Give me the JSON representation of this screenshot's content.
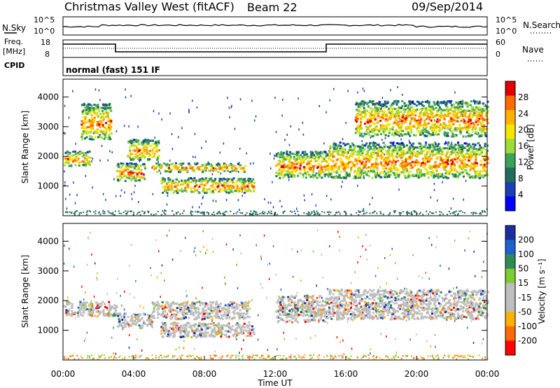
{
  "header": {
    "station": "Christmas Valley West (fitACF)",
    "beam": "Beam 22",
    "date": "09/Sep/2014"
  },
  "noise_panel": {
    "left_label": "N.Sky",
    "right_label": "N.Search",
    "ticks": [
      "10^5",
      "10^0"
    ]
  },
  "freq_panel": {
    "left_label_1": "Freq.",
    "left_label_2": "[MHz]",
    "left_ticks": [
      "18",
      "8"
    ],
    "right_label": "Nave",
    "right_ticks": [
      "60",
      "0"
    ]
  },
  "cpid_panel": {
    "label": "CPID",
    "mode": "normal (fast) 151 IF"
  },
  "chart_data": [
    {
      "type": "heatmap",
      "name": "power",
      "ylabel": "Slant Range [km]",
      "yticks": [
        "4000",
        "3000",
        "2000",
        "1000"
      ],
      "colorbar_label": "Power [dB]",
      "colorbar_ticks": [
        "28",
        "24",
        "20",
        "16",
        "12",
        "8",
        "4"
      ],
      "colors": [
        "#e00000",
        "#ff6a00",
        "#ffb000",
        "#f5e600",
        "#9fdc3a",
        "#3aa35a",
        "#1f6e5a",
        "#1b3fb4",
        "#0000ff"
      ],
      "bands": [
        {
          "x": [
            0.0,
            1.5
          ],
          "y": [
            1700,
            2200
          ]
        },
        {
          "x": [
            1.0,
            2.7
          ],
          "y": [
            2600,
            3800
          ]
        },
        {
          "x": [
            3.0,
            4.6
          ],
          "y": [
            1200,
            1800
          ]
        },
        {
          "x": [
            3.6,
            5.4
          ],
          "y": [
            1900,
            2600
          ]
        },
        {
          "x": [
            5.0,
            10.3
          ],
          "y": [
            1500,
            1800
          ]
        },
        {
          "x": [
            5.5,
            10.8
          ],
          "y": [
            800,
            1300
          ]
        },
        {
          "x": [
            12.0,
            15.0
          ],
          "y": [
            1300,
            2200
          ]
        },
        {
          "x": [
            15.0,
            24.0
          ],
          "y": [
            1300,
            2500
          ]
        },
        {
          "x": [
            16.5,
            24.0
          ],
          "y": [
            2700,
            3900
          ]
        }
      ]
    },
    {
      "type": "heatmap",
      "name": "velocity",
      "ylabel": "Slant Range [km]",
      "yticks": [
        "4000",
        "3000",
        "2000",
        "1000"
      ],
      "colorbar_label": "Velocity [m s⁻¹]",
      "colorbar_ticks": [
        "200",
        "100",
        "50",
        "15",
        "-15",
        "-50",
        "-100",
        "-200"
      ],
      "colors": [
        "#1b2e9e",
        "#2060d0",
        "#2e8b57",
        "#7ccd32",
        "#bebebe",
        "#bebebe",
        "#ffb000",
        "#ff6a00",
        "#ff0000"
      ],
      "bands": [
        {
          "x": [
            0.0,
            3.0
          ],
          "y": [
            1500,
            2000
          ]
        },
        {
          "x": [
            3.0,
            5.0
          ],
          "y": [
            1100,
            1600
          ]
        },
        {
          "x": [
            5.0,
            10.5
          ],
          "y": [
            1400,
            2000
          ]
        },
        {
          "x": [
            5.5,
            10.8
          ],
          "y": [
            800,
            1300
          ]
        },
        {
          "x": [
            15.0,
            24.0
          ],
          "y": [
            1400,
            2400
          ]
        },
        {
          "x": [
            12.0,
            15.0
          ],
          "y": [
            1300,
            2200
          ]
        }
      ]
    }
  ],
  "x_axis": {
    "ticks": [
      "00:00",
      "04:00",
      "08:00",
      "12:00",
      "16:00",
      "20:00",
      "00:00"
    ],
    "label": "Time UT"
  }
}
